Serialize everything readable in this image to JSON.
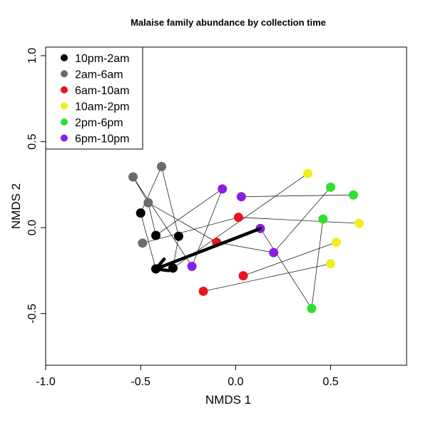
{
  "chart_data": {
    "type": "scatter",
    "title": "Malaise family abundance by collection time",
    "xlabel": "NMDS 1",
    "ylabel": "NMDS 2",
    "xlim": [
      -1.0,
      0.9
    ],
    "ylim": [
      -0.8,
      1.05
    ],
    "x_ticks": [
      "-1.0",
      "-0.5",
      "0.0",
      "0.5"
    ],
    "y_ticks": [
      "-0.5",
      "0.0",
      "0.5",
      "1.0"
    ],
    "legend_position": "top-left",
    "series": [
      {
        "name": "10pm-2am",
        "color": "#000000",
        "points": [
          [
            -0.5,
            0.085
          ],
          [
            -0.42,
            -0.045
          ],
          [
            -0.3,
            -0.05
          ],
          [
            -0.42,
            -0.24
          ],
          [
            -0.33,
            -0.235
          ]
        ]
      },
      {
        "name": "2am-6am",
        "color": "#6b6b6b",
        "points": [
          [
            -0.54,
            0.295
          ],
          [
            -0.39,
            0.355
          ],
          [
            -0.46,
            0.145
          ],
          [
            -0.49,
            -0.09
          ]
        ]
      },
      {
        "name": "6am-10am",
        "color": "#e8161b",
        "points": [
          [
            0.015,
            0.06
          ],
          [
            -0.1,
            -0.085
          ],
          [
            0.04,
            -0.28
          ],
          [
            -0.17,
            -0.37
          ]
        ]
      },
      {
        "name": "10am-2pm",
        "color": "#f2ee1d",
        "points": [
          [
            0.38,
            0.315
          ],
          [
            0.53,
            -0.085
          ],
          [
            0.65,
            0.025
          ],
          [
            0.5,
            -0.21
          ]
        ]
      },
      {
        "name": "2pm-6pm",
        "color": "#2ee02e",
        "points": [
          [
            0.5,
            0.235
          ],
          [
            0.62,
            0.19
          ],
          [
            0.46,
            0.05
          ],
          [
            0.4,
            -0.47
          ]
        ]
      },
      {
        "name": "6pm-10pm",
        "color": "#8a1fe0",
        "points": [
          [
            -0.07,
            0.225
          ],
          [
            0.03,
            0.18
          ],
          [
            0.13,
            -0.005
          ],
          [
            0.2,
            -0.145
          ],
          [
            -0.23,
            -0.225
          ]
        ]
      }
    ],
    "segments": [
      [
        [
          -0.54,
          0.295
        ],
        [
          -0.46,
          0.145
        ]
      ],
      [
        [
          -0.54,
          0.295
        ],
        [
          -0.23,
          -0.225
        ]
      ],
      [
        [
          -0.39,
          0.355
        ],
        [
          -0.3,
          -0.05
        ]
      ],
      [
        [
          -0.39,
          0.355
        ],
        [
          -0.5,
          0.085
        ]
      ],
      [
        [
          -0.46,
          0.145
        ],
        [
          -0.42,
          -0.045
        ]
      ],
      [
        [
          -0.46,
          0.145
        ],
        [
          -0.1,
          -0.085
        ]
      ],
      [
        [
          -0.5,
          0.085
        ],
        [
          -0.42,
          -0.24
        ]
      ],
      [
        [
          -0.49,
          -0.09
        ],
        [
          0.015,
          0.06
        ]
      ],
      [
        [
          -0.42,
          -0.045
        ],
        [
          -0.07,
          0.225
        ]
      ],
      [
        [
          -0.3,
          -0.05
        ],
        [
          -0.33,
          -0.235
        ]
      ],
      [
        [
          -0.33,
          -0.235
        ],
        [
          0.38,
          0.315
        ]
      ],
      [
        [
          0.015,
          0.06
        ],
        [
          0.65,
          0.025
        ]
      ],
      [
        [
          -0.1,
          -0.085
        ],
        [
          0.2,
          -0.145
        ]
      ],
      [
        [
          0.04,
          -0.28
        ],
        [
          0.53,
          -0.085
        ]
      ],
      [
        [
          -0.17,
          -0.37
        ],
        [
          0.5,
          -0.21
        ]
      ],
      [
        [
          0.03,
          0.18
        ],
        [
          0.62,
          0.19
        ]
      ],
      [
        [
          0.13,
          -0.005
        ],
        [
          0.4,
          -0.47
        ]
      ],
      [
        [
          0.4,
          -0.47
        ],
        [
          0.46,
          0.05
        ]
      ],
      [
        [
          0.2,
          -0.145
        ],
        [
          0.5,
          0.235
        ]
      ],
      [
        [
          -0.07,
          0.225
        ],
        [
          -0.23,
          -0.225
        ]
      ]
    ],
    "arrow": {
      "from": [
        0.13,
        -0.005
      ],
      "to": [
        -0.42,
        -0.24
      ]
    }
  }
}
